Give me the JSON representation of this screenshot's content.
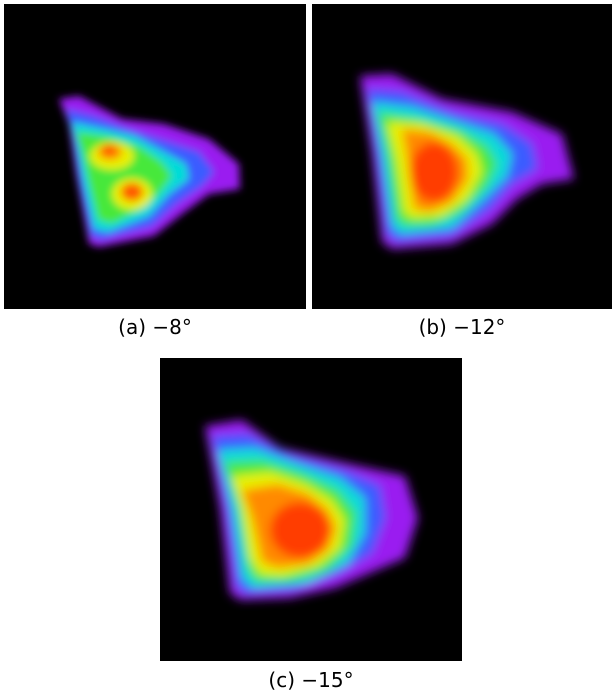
{
  "panels": [
    {
      "id": "a",
      "caption": "(a) −8°"
    },
    {
      "id": "b",
      "caption": "(b) −12°"
    },
    {
      "id": "c",
      "caption": "(c) −15°"
    }
  ],
  "colors": {
    "background": "#000000",
    "purple": "#a020f0",
    "blue": "#3060ff",
    "cyan": "#00e0e0",
    "green": "#30e030",
    "yellow": "#f0f000",
    "orange": "#ff9000",
    "red": "#ff3000"
  }
}
